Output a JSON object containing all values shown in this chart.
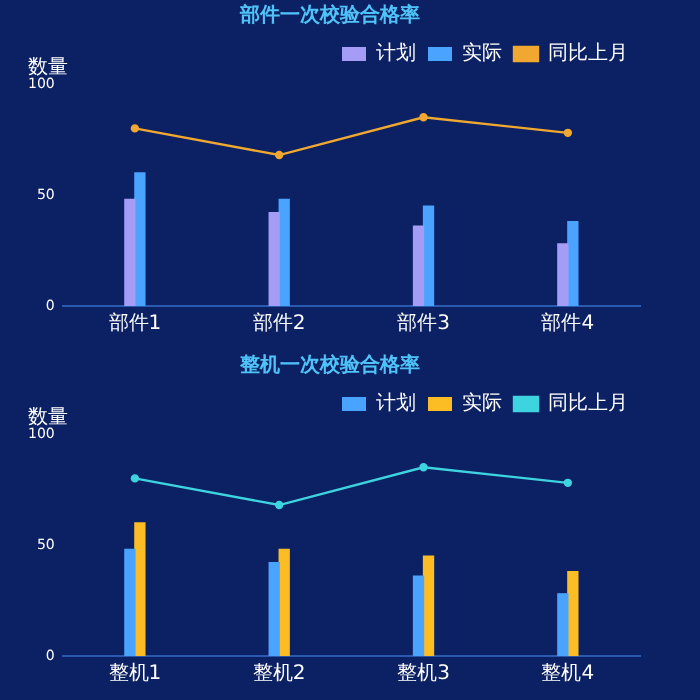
{
  "chart_data": [
    {
      "type": "bar",
      "title": "部件一次校验合格率",
      "ylabel": "数量",
      "categories": [
        "部件1",
        "部件2",
        "部件3",
        "部件4"
      ],
      "series": [
        {
          "name": "计划",
          "color": "#a59cf5",
          "values": [
            48,
            42,
            36,
            28
          ]
        },
        {
          "name": "实际",
          "color": "#4aa3ff",
          "values": [
            60,
            48,
            45,
            38
          ]
        },
        {
          "name": "同比上月",
          "type": "line",
          "color": "#f0a830",
          "marker": "circle",
          "values": [
            80,
            68,
            85,
            78
          ]
        }
      ],
      "ylim": [
        0,
        100
      ],
      "yticks": [
        0,
        50,
        100
      ],
      "grid": false,
      "legend": "top right"
    },
    {
      "type": "bar",
      "title": "整机一次校验合格率",
      "ylabel": "数量",
      "categories": [
        "整机1",
        "整机2",
        "整机3",
        "整机4"
      ],
      "series": [
        {
          "name": "计划",
          "color": "#4aa3ff",
          "values": [
            48,
            42,
            36,
            28
          ]
        },
        {
          "name": "实际",
          "color": "#fbbd23",
          "values": [
            60,
            48,
            45,
            38
          ]
        },
        {
          "name": "同比上月",
          "type": "line",
          "color": "#3dd4e0",
          "marker": "circle",
          "values": [
            80,
            68,
            85,
            78
          ]
        }
      ],
      "ylim": [
        0,
        100
      ],
      "yticks": [
        0,
        50,
        100
      ],
      "grid": false,
      "legend": "top right"
    }
  ]
}
